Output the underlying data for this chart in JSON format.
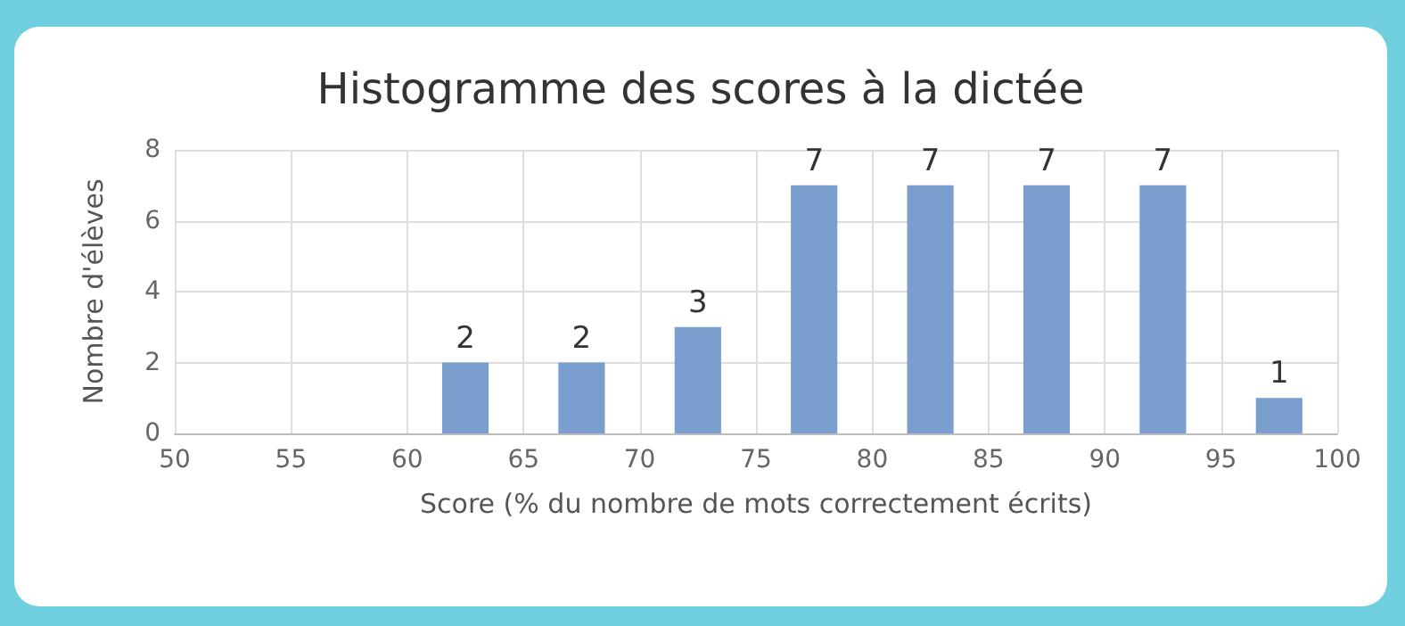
{
  "chart_data": {
    "type": "histogram",
    "title": "Histogramme des scores à la dictée",
    "xlabel": "Score (% du nombre de mots correctement écrits)",
    "ylabel": "Nombre d'élèves",
    "bins": [
      50,
      55,
      60,
      65,
      70,
      75,
      80,
      85,
      90,
      95,
      100
    ],
    "values": [
      0,
      0,
      2,
      2,
      3,
      7,
      7,
      7,
      7,
      1
    ],
    "value_labels": [
      null,
      null,
      "2",
      "2",
      "3",
      "7",
      "7",
      "7",
      "7",
      "1"
    ],
    "color": "#7a9fcf",
    "xlim": [
      50,
      100
    ],
    "xticks": [
      50,
      55,
      60,
      65,
      70,
      75,
      80,
      85,
      90,
      95,
      100
    ],
    "ylim": [
      0,
      8
    ],
    "yticks": [
      0,
      2,
      4,
      6,
      8
    ],
    "grid": true
  }
}
